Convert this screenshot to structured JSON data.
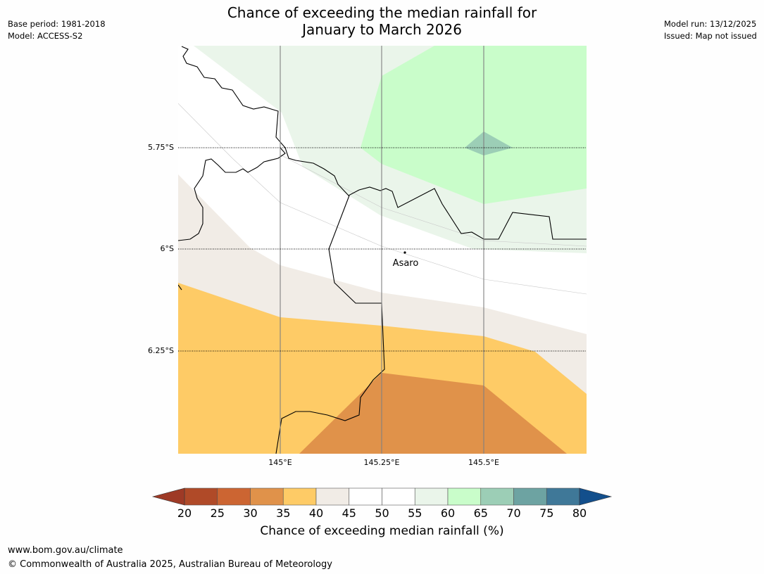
{
  "title_line1": "Chance of exceeding the median rainfall for",
  "title_line2": "January to March 2026",
  "meta_left": {
    "base_period": "Base period: 1981-2018",
    "model": "Model: ACCESS-S2"
  },
  "meta_right": {
    "model_run": "Model run: 13/12/2025",
    "issued": "Issued: Map not issued"
  },
  "map": {
    "lat_labels": [
      "5.75°S",
      "6°S",
      "6.25°S"
    ],
    "lon_labels": [
      "145°E",
      "145.25°E",
      "145.5°E"
    ],
    "place": "Asaro"
  },
  "colorbar": {
    "ticks": [
      "20",
      "25",
      "30",
      "35",
      "40",
      "45",
      "50",
      "55",
      "60",
      "65",
      "70",
      "75",
      "80"
    ],
    "label": "Chance of exceeding median rainfall (%)",
    "low_color": "#9e3a26",
    "high_color": "#134f8c",
    "colors": [
      "#b04a28",
      "#cc6532",
      "#e0924a",
      "#fecb66",
      "#f1ece6",
      "#ffffff",
      "#ffffff",
      "#eaf5ea",
      "#c9fdca",
      "#9cceb6",
      "#6da3a2",
      "#3f7898"
    ]
  },
  "footer": {
    "url": "www.bom.gov.au/climate",
    "copyright": "© Commonwealth of Australia 2025, Australian Bureau of Meteorology"
  }
}
